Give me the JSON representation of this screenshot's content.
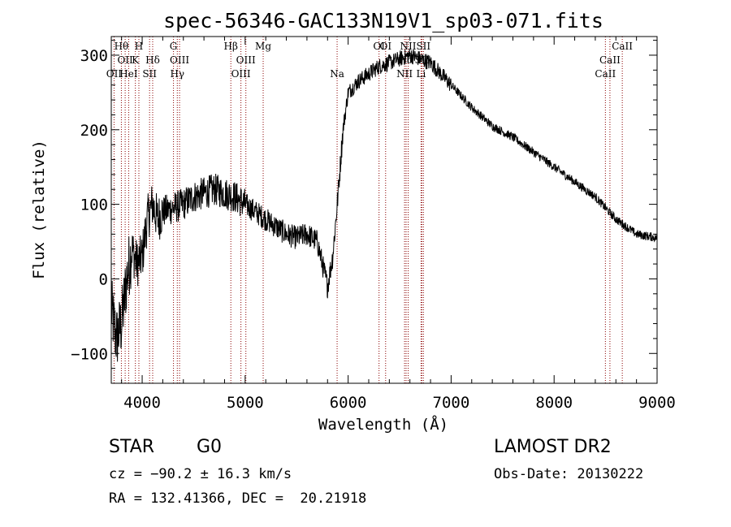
{
  "chart_data": {
    "type": "line",
    "title": "spec-56346-GAC133N19V1_sp03-071.fits",
    "xlabel": "Wavelength (Å)",
    "ylabel": "Flux (relative)",
    "xlim": [
      3700,
      9000
    ],
    "ylim": [
      -140,
      325
    ],
    "xticks": [
      4000,
      5000,
      6000,
      7000,
      8000,
      9000
    ],
    "yticks": [
      -100,
      0,
      100,
      200,
      300
    ],
    "xtick_labels": [
      "4000",
      "5000",
      "6000",
      "7000",
      "8000",
      "9000"
    ],
    "ytick_labels": [
      "−100",
      "0",
      "100",
      "200",
      "300"
    ],
    "series": [
      {
        "x": [
          3700,
          3750,
          3800,
          3850,
          3900,
          3950,
          4000,
          4050,
          4100,
          4150,
          4200,
          4300,
          4400,
          4500,
          4600,
          4700,
          4800,
          4900,
          5000,
          5100,
          5200,
          5300,
          5400,
          5500,
          5600,
          5700,
          5750,
          5800,
          5850,
          5900,
          5950,
          6000,
          6100,
          6200,
          6300,
          6400,
          6500,
          6600,
          6700,
          6800,
          7000,
          7200,
          7400,
          7600,
          7800,
          8000,
          8200,
          8400,
          8600,
          8800,
          9000
        ],
        "y": [
          -40,
          -80,
          -60,
          0,
          40,
          20,
          30,
          80,
          100,
          80,
          90,
          95,
          100,
          110,
          115,
          120,
          115,
          110,
          100,
          90,
          80,
          70,
          60,
          55,
          60,
          50,
          20,
          -10,
          30,
          110,
          200,
          250,
          265,
          275,
          285,
          290,
          295,
          300,
          295,
          290,
          260,
          230,
          205,
          190,
          170,
          150,
          130,
          110,
          80,
          60,
          55
        ]
      }
    ],
    "lines": [
      {
        "wl": 3727,
        "label": "OII",
        "row": 2
      },
      {
        "wl": 3798,
        "label": "Hθ",
        "row": 0
      },
      {
        "wl": 3835,
        "label": "OII",
        "row": 1
      },
      {
        "wl": 3869,
        "label": "HeI",
        "row": 2
      },
      {
        "wl": 3934,
        "label": "K",
        "row": 1
      },
      {
        "wl": 3968,
        "label": "H",
        "row": 0
      },
      {
        "wl": 4072,
        "label": "SII",
        "row": 2
      },
      {
        "wl": 4102,
        "label": "Hδ",
        "row": 1
      },
      {
        "wl": 4304,
        "label": "G",
        "row": 0
      },
      {
        "wl": 4341,
        "label": "Hγ",
        "row": 2
      },
      {
        "wl": 4363,
        "label": "OIII",
        "row": 1
      },
      {
        "wl": 4861,
        "label": "Hβ",
        "row": 0
      },
      {
        "wl": 4959,
        "label": "OIII",
        "row": 2
      },
      {
        "wl": 5007,
        "label": "OIII",
        "row": 1
      },
      {
        "wl": 5175,
        "label": "Mg",
        "row": 0
      },
      {
        "wl": 5893,
        "label": "Na",
        "row": 2
      },
      {
        "wl": 6300,
        "label": "OI",
        "row": 0
      },
      {
        "wl": 6364,
        "label": "OI",
        "row": 0
      },
      {
        "wl": 6548,
        "label": "NII",
        "row": 2
      },
      {
        "wl": 6563,
        "label": "Hα",
        "row": 1
      },
      {
        "wl": 6583,
        "label": "NII",
        "row": 0
      },
      {
        "wl": 6708,
        "label": "Li",
        "row": 2
      },
      {
        "wl": 6716,
        "label": "SII",
        "row": 1
      },
      {
        "wl": 6731,
        "label": "SII",
        "row": 0
      },
      {
        "wl": 8498,
        "label": "CaII",
        "row": 2
      },
      {
        "wl": 8542,
        "label": "CaII",
        "row": 1
      },
      {
        "wl": 8662,
        "label": "CaII",
        "row": 0
      }
    ]
  },
  "info": {
    "class": "STAR",
    "subclass": "G0",
    "survey": "LAMOST DR2",
    "cz": "cz = −90.2 ± 16.3 km/s",
    "obs_date": "Obs-Date: 20130222",
    "radec": "RA = 132.41366, DEC =  20.21918"
  },
  "colors": {
    "line_marker": "#8b0000",
    "spectrum": "#000000"
  }
}
